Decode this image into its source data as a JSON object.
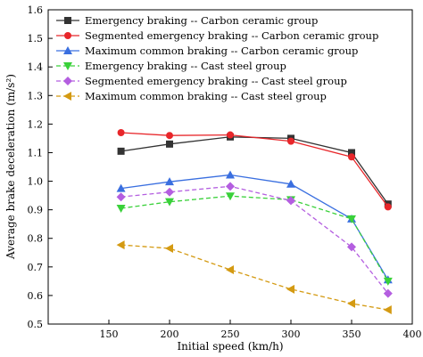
{
  "chart_data": {
    "type": "line",
    "title": "",
    "xlabel": "Initial speed (km/h)",
    "ylabel": "Average brake deceleration (m/s²)",
    "xlim": [
      100,
      400
    ],
    "ylim": [
      0.5,
      1.6
    ],
    "xticks": [
      150,
      200,
      250,
      300,
      350,
      400
    ],
    "yticks": [
      0.5,
      0.6,
      0.7,
      0.8,
      0.9,
      1.0,
      1.1,
      1.2,
      1.3,
      1.4,
      1.5,
      1.6
    ],
    "xtick_labels": [
      "150",
      "200",
      "250",
      "300",
      "350",
      "400"
    ],
    "ytick_labels": [
      "0.5",
      "0.6",
      "0.7",
      "0.8",
      "0.9",
      "1.0",
      "1.1",
      "1.2",
      "1.3",
      "1.4",
      "1.5",
      "1.6"
    ],
    "legend_position": "top-left",
    "grid": false,
    "x": [
      160,
      200,
      250,
      300,
      350,
      380
    ],
    "series": [
      {
        "name": "Emergency braking -- Carbon ceramic group",
        "values": [
          1.105,
          1.13,
          1.155,
          1.15,
          1.1,
          0.92
        ],
        "color": "#333333",
        "marker": "square",
        "dash": "solid"
      },
      {
        "name": "Segmented emergency braking -- Carbon ceramic group",
        "values": [
          1.17,
          1.16,
          1.162,
          1.14,
          1.085,
          0.91
        ],
        "color": "#e8262a",
        "marker": "circle",
        "dash": "solid"
      },
      {
        "name": "Maximum common braking -- Carbon ceramic group",
        "values": [
          0.975,
          0.998,
          1.022,
          0.99,
          0.868,
          0.655
        ],
        "color": "#3a6fe0",
        "marker": "triangle-up",
        "dash": "solid"
      },
      {
        "name": "Emergency braking -- Cast steel group",
        "values": [
          0.905,
          0.928,
          0.948,
          0.935,
          0.868,
          0.65
        ],
        "color": "#3ad13a",
        "marker": "triangle-down",
        "dash": "dashed"
      },
      {
        "name": "Segmented emergency braking -- Cast steel group",
        "values": [
          0.945,
          0.962,
          0.982,
          0.932,
          0.77,
          0.607
        ],
        "color": "#b45ee0",
        "marker": "diamond",
        "dash": "dashed"
      },
      {
        "name": "Maximum common braking -- Cast steel group",
        "values": [
          0.777,
          0.765,
          0.69,
          0.622,
          0.572,
          0.55
        ],
        "color": "#d49a12",
        "marker": "triangle-left",
        "dash": "dashed"
      }
    ]
  }
}
